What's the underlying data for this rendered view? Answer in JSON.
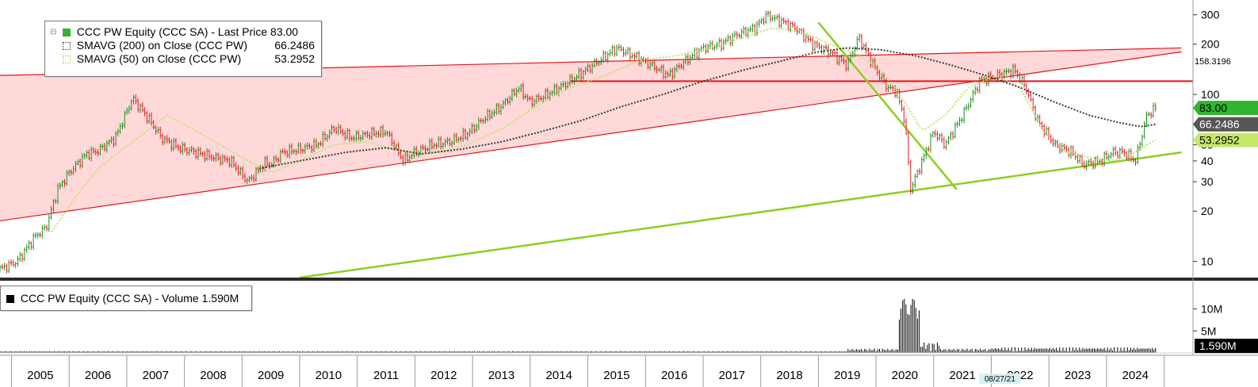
{
  "legend_price": {
    "price_label": "CCC PW Equity (CCC SA) - Last Price",
    "price_value": "83.00",
    "sma200_label": "SMAVG (200)  on Close (CCC PW)",
    "sma200_value": "66.2486",
    "sma50_label": "SMAVG (50)  on Close (CCC PW)",
    "sma50_value": "53.2952"
  },
  "legend_volume": {
    "label": "CCC PW Equity (CCC SA) - Volume",
    "value": "1.590M"
  },
  "date_tag": "08/27/21",
  "colors": {
    "channel_fill": "#ffd9d9",
    "channel_line": "#e8151b",
    "hline": "#e8151b",
    "trendline": "#8ccf1f",
    "up": "#1a8f1a",
    "down": "#e8151b",
    "sma200": "#3a3a2a",
    "sma50": "#c2e070",
    "price_tag": "#2fb52f",
    "sma200_tag": "#555555",
    "sma50_tag": "#c6e86a",
    "volume": "#000000"
  },
  "chart_data": {
    "type": "line",
    "scale": "log",
    "ylim": [
      8,
      360
    ],
    "yticks": [
      10,
      20,
      30,
      40,
      50,
      100,
      200,
      300
    ],
    "ytick_labels": [
      "10",
      "20",
      "30",
      "40",
      "50",
      "100",
      "200",
      "300"
    ],
    "x_years": [
      "2005",
      "2006",
      "2007",
      "2008",
      "2009",
      "2010",
      "2011",
      "2012",
      "2013",
      "2014",
      "2015",
      "2016",
      "2017",
      "2018",
      "2019",
      "2020",
      "2021",
      "2022",
      "2023",
      "2024"
    ],
    "year_bounds": [
      2004.3,
      2025.0
    ],
    "series": [
      {
        "name": "Last Price",
        "x": [
          2004.3,
          2004.6,
          2004.9,
          2005.1,
          2005.3,
          2005.5,
          2005.8,
          2006.0,
          2006.3,
          2006.6,
          2006.9,
          2007.1,
          2007.4,
          2007.7,
          2008.0,
          2008.3,
          2008.6,
          2008.9,
          2009.0,
          2009.2,
          2009.5,
          2009.8,
          2010.1,
          2010.4,
          2010.7,
          2011.0,
          2011.3,
          2011.5,
          2011.8,
          2012.1,
          2012.4,
          2012.7,
          2013.0,
          2013.3,
          2013.5,
          2013.8,
          2014.1,
          2014.4,
          2014.7,
          2015.0,
          2015.3,
          2015.6,
          2015.9,
          2016.2,
          2016.5,
          2016.8,
          2017.1,
          2017.4,
          2017.6,
          2017.9,
          2018.1,
          2018.4,
          2018.7,
          2019.0,
          2019.2,
          2019.5,
          2019.7,
          2019.85,
          2020.0,
          2020.1,
          2020.3,
          2020.5,
          2020.7,
          2021.0,
          2021.3,
          2021.6,
          2021.9,
          2022.1,
          2022.3,
          2022.6,
          2022.9,
          2023.1,
          2023.4,
          2023.6,
          2023.8,
          2024.0,
          2024.2,
          2024.35
        ],
        "values": [
          9,
          10,
          14,
          16,
          27,
          34,
          44,
          46,
          55,
          95,
          70,
          55,
          48,
          45,
          42,
          40,
          30,
          39,
          38,
          45,
          47,
          50,
          63,
          55,
          58,
          60,
          40,
          45,
          50,
          52,
          58,
          72,
          85,
          110,
          90,
          100,
          115,
          135,
          160,
          190,
          170,
          150,
          130,
          160,
          190,
          200,
          230,
          250,
          300,
          270,
          250,
          200,
          180,
          150,
          220,
          140,
          110,
          105,
          70,
          27,
          40,
          60,
          50,
          75,
          120,
          130,
          140,
          110,
          70,
          50,
          45,
          38,
          40,
          45,
          45,
          40,
          75,
          83
        ]
      },
      {
        "name": "SMAVG (200)",
        "x": [
          2008.8,
          2009.5,
          2010.3,
          2011.0,
          2011.6,
          2012.3,
          2013.0,
          2013.7,
          2014.4,
          2015.1,
          2015.8,
          2016.5,
          2017.2,
          2017.9,
          2018.5,
          2019.0,
          2019.6,
          2020.2,
          2020.8,
          2021.4,
          2022.0,
          2022.6,
          2023.2,
          2023.7,
          2024.1,
          2024.35
        ],
        "values": [
          36,
          40,
          45,
          48,
          44,
          47,
          52,
          60,
          70,
          85,
          100,
          120,
          140,
          160,
          180,
          190,
          185,
          170,
          150,
          130,
          110,
          90,
          75,
          68,
          64,
          66.2486
        ]
      },
      {
        "name": "SMAVG (50)",
        "x": [
          2005.2,
          2005.6,
          2006.0,
          2006.6,
          2007.2,
          2007.8,
          2008.5,
          2009.0,
          2009.5,
          2010.1,
          2010.7,
          2011.2,
          2011.8,
          2012.4,
          2013.0,
          2013.6,
          2014.2,
          2014.8,
          2015.4,
          2016.0,
          2016.6,
          2017.2,
          2017.7,
          2018.2,
          2018.7,
          2019.1,
          2019.6,
          2020.0,
          2020.3,
          2020.7,
          2021.1,
          2021.6,
          2022.0,
          2022.4,
          2022.8,
          2023.2,
          2023.6,
          2023.9,
          2024.2,
          2024.35
        ],
        "values": [
          15,
          24,
          36,
          52,
          75,
          58,
          42,
          34,
          40,
          50,
          52,
          46,
          44,
          50,
          62,
          85,
          110,
          130,
          160,
          170,
          190,
          220,
          250,
          240,
          200,
          180,
          140,
          90,
          60,
          75,
          110,
          130,
          110,
          60,
          45,
          42,
          40,
          43,
          50,
          53.2952
        ]
      }
    ],
    "annotations": {
      "channel_upper": [
        [
          2004.3,
          130
        ],
        [
          2024.8,
          190
        ]
      ],
      "channel_lower": [
        [
          2004.3,
          17.5
        ],
        [
          2024.8,
          180
        ]
      ],
      "channel_side_value": "158.3196",
      "hline_value": 120,
      "hline_from": 2014.2,
      "downtrend": [
        [
          2018.5,
          270
        ],
        [
          2020.9,
          27
        ]
      ],
      "uptrend": [
        [
          2009.5,
          8
        ],
        [
          2024.8,
          45
        ]
      ]
    },
    "volume": {
      "ytick_labels": [
        "10M",
        "5M"
      ],
      "yticks": [
        10,
        5
      ],
      "ymax": 13,
      "unit": "M"
    }
  }
}
